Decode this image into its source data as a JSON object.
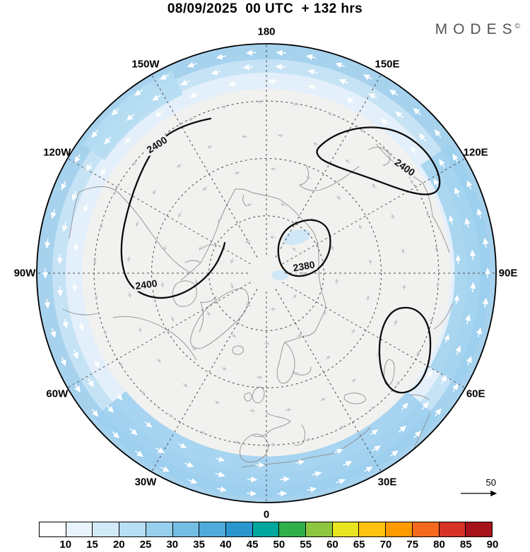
{
  "title": "08/09/2025  00 UTC  + 132 hrs",
  "brand": {
    "name": "MODES",
    "mark": "©"
  },
  "map": {
    "ring_labels": [
      {
        "text": "180",
        "lon": 180
      },
      {
        "text": "150W",
        "lon": -150
      },
      {
        "text": "150E",
        "lon": 150
      },
      {
        "text": "120W",
        "lon": -120
      },
      {
        "text": "120E",
        "lon": 120
      },
      {
        "text": "90W",
        "lon": -90
      },
      {
        "text": "90E",
        "lon": 90
      },
      {
        "text": "60W",
        "lon": -60
      },
      {
        "text": "60E",
        "lon": 60
      },
      {
        "text": "30W",
        "lon": -30
      },
      {
        "text": "30E",
        "lon": 30
      },
      {
        "text": "0",
        "lon": 0
      }
    ],
    "contour_labels": [
      {
        "text": "2400"
      },
      {
        "text": "2400"
      },
      {
        "text": "2400"
      },
      {
        "text": "2380"
      }
    ]
  },
  "wind_scale": {
    "value": "50"
  },
  "colorbar": {
    "ticks": [
      "10",
      "15",
      "20",
      "25",
      "30",
      "35",
      "40",
      "45",
      "50",
      "55",
      "60",
      "65",
      "70",
      "75",
      "80",
      "85",
      "90"
    ],
    "colors": [
      "#ffffff",
      "#e8f4fc",
      "#d2eaf8",
      "#b7def3",
      "#97cfec",
      "#74bde4",
      "#4fabdb",
      "#2b96ce",
      "#00a79d",
      "#2fb04b",
      "#8dc63f",
      "#e8e41f",
      "#ffc20e",
      "#ff9a00",
      "#f4691e",
      "#d63226",
      "#a5121a"
    ]
  }
}
